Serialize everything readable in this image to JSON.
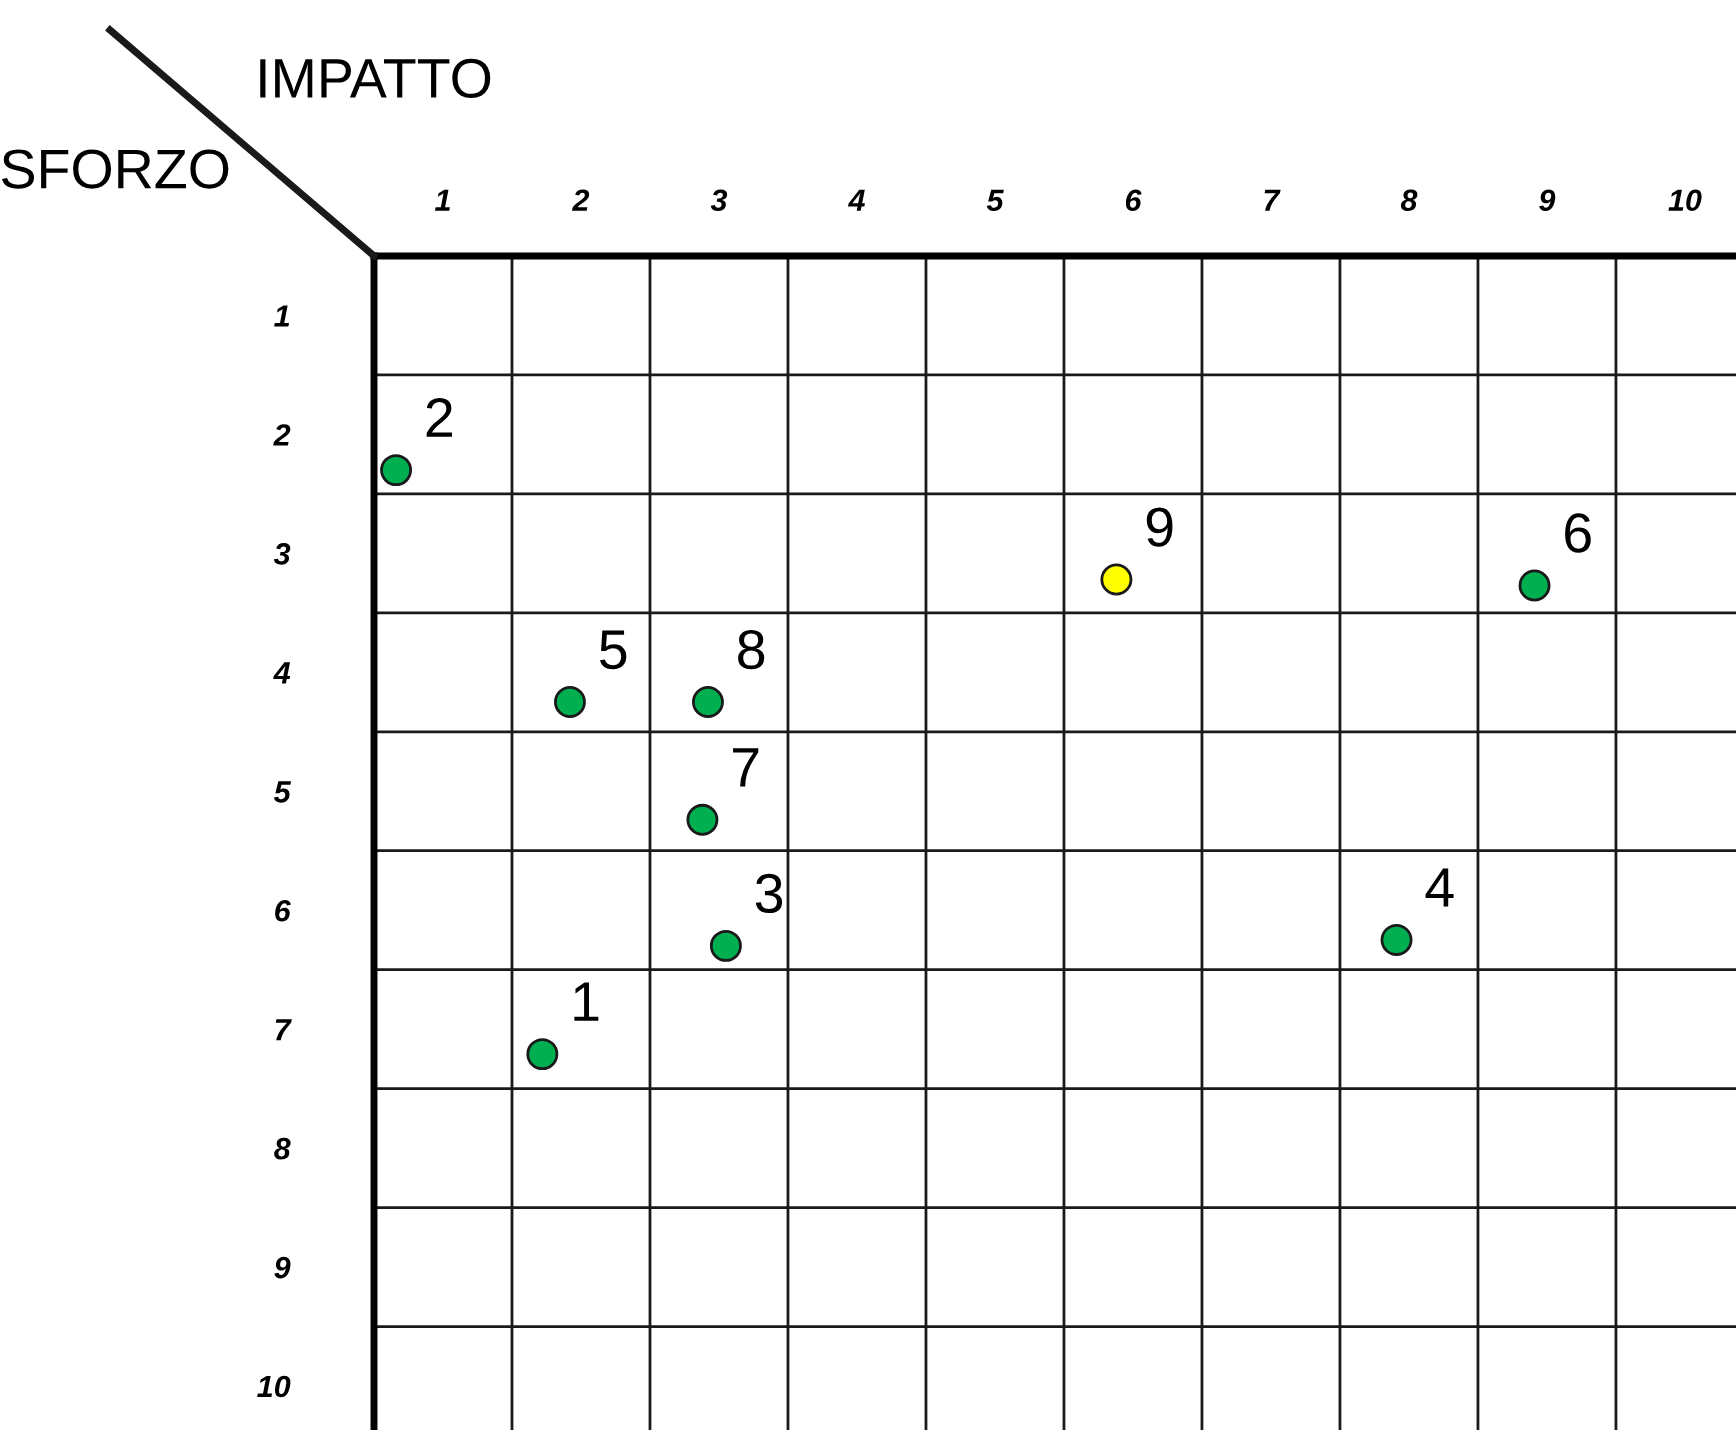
{
  "chart_data": {
    "type": "scatter",
    "xlabel": "IMPATTO",
    "ylabel": "SFORZO",
    "x": [
      1.72,
      0.66,
      3.05,
      7.91,
      1.92,
      8.91,
      2.88,
      2.92,
      5.88
    ],
    "values": [
      7.21,
      2.3,
      6.3,
      6.25,
      4.25,
      3.27,
      5.24,
      4.25,
      3.22
    ],
    "colors": [
      "#00b050",
      "#00b050",
      "#00b050",
      "#00b050",
      "#00b050",
      "#00b050",
      "#00b050",
      "#00b050",
      "#ffff00"
    ],
    "marker": "circle",
    "xlim": [
      0.5,
      10.37
    ],
    "ylim": [
      10.37,
      0.5
    ],
    "xticks": [
      1,
      2,
      3,
      4,
      5,
      6,
      7,
      8,
      9,
      10,
      {
        "value": 1.5,
        "label": null
      },
      {
        "value": 2.5,
        "label": null
      },
      {
        "value": 3.5,
        "label": null
      },
      {
        "value": 4.5,
        "label": null
      },
      {
        "value": 5.5,
        "label": null
      },
      {
        "value": 6.5,
        "label": null
      },
      {
        "value": 7.5,
        "label": null
      },
      {
        "value": 8.5,
        "label": null
      },
      {
        "value": 9.5,
        "label": null
      }
    ],
    "yticks": [
      1,
      2,
      3,
      4,
      5,
      6,
      7,
      8,
      9,
      10,
      {
        "value": 1.5,
        "label": null
      },
      {
        "value": 2.5,
        "label": null
      },
      {
        "value": 3.5,
        "label": null
      },
      {
        "value": 4.5,
        "label": null
      },
      {
        "value": 5.5,
        "label": null
      },
      {
        "value": 6.5,
        "label": null
      },
      {
        "value": 7.5,
        "label": null
      },
      {
        "value": 8.5,
        "label": null
      },
      {
        "value": 9.5,
        "label": null
      }
    ],
    "grid": true,
    "annotations": [
      {
        "text": "1",
        "x": 1.72,
        "y": 7.21
      },
      {
        "text": "2",
        "x": 0.66,
        "y": 2.3
      },
      {
        "text": "3",
        "x": 3.05,
        "y": 6.3
      },
      {
        "text": "4",
        "x": 7.91,
        "y": 6.25
      },
      {
        "text": "5",
        "x": 1.92,
        "y": 4.25
      },
      {
        "text": "6",
        "x": 8.91,
        "y": 3.27
      },
      {
        "text": "7",
        "x": 2.88,
        "y": 5.24
      },
      {
        "text": "8",
        "x": 2.92,
        "y": 4.25
      },
      {
        "text": "9",
        "x": 5.88,
        "y": 3.22
      }
    ]
  }
}
